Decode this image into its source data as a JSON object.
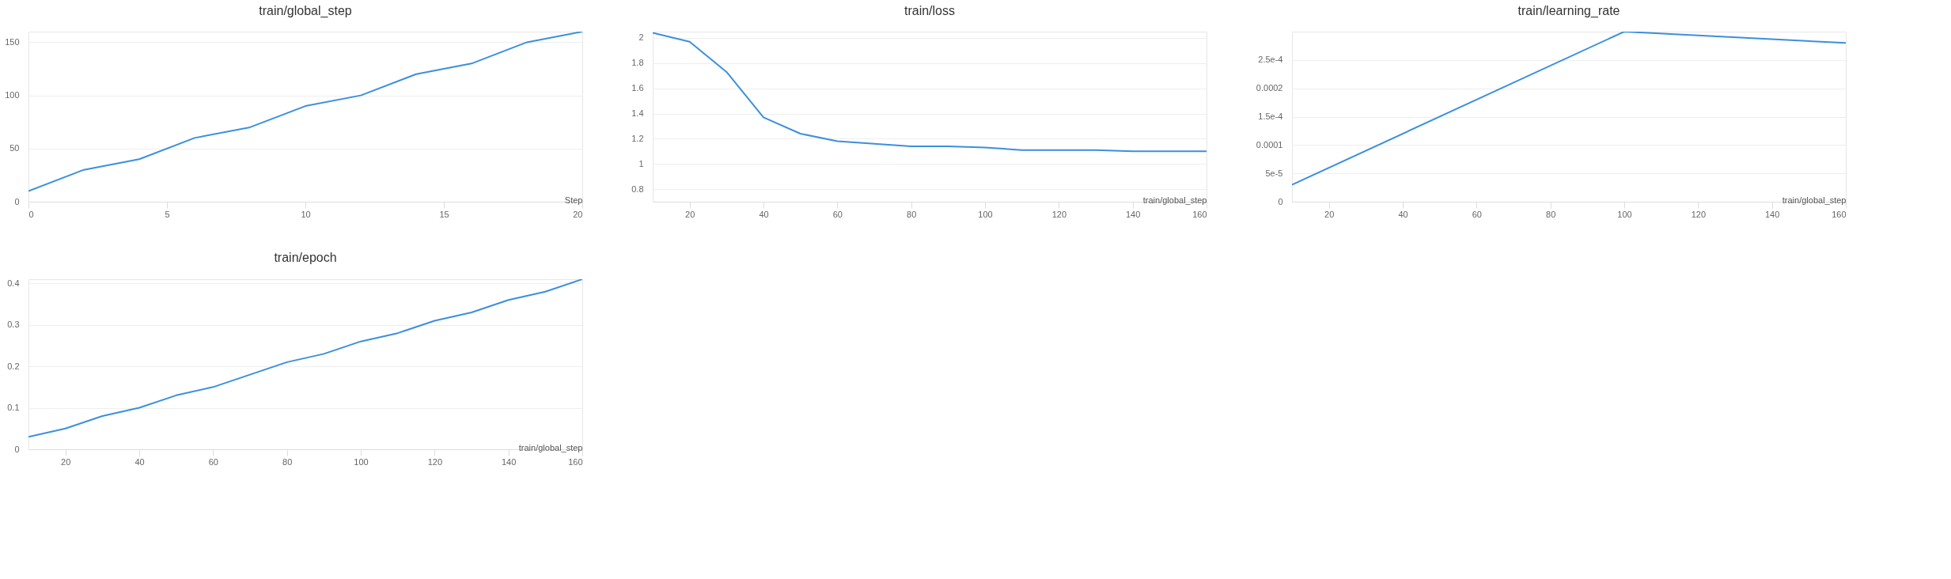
{
  "chart_data": [
    {
      "type": "line",
      "title": "train/global_step",
      "xlabel": "Step",
      "x": [
        0,
        2,
        4,
        6,
        8,
        10,
        12,
        14,
        16,
        18,
        20
      ],
      "series": [
        {
          "color": "#3b8fde",
          "values": [
            10,
            30,
            40,
            60,
            70,
            90,
            100,
            120,
            130,
            150,
            160
          ]
        }
      ],
      "xlim": [
        0,
        20
      ],
      "xticks": [
        0,
        5,
        10,
        15,
        20
      ],
      "ylim": [
        0,
        160
      ],
      "yticks": [
        0,
        50,
        100,
        150
      ],
      "grid": "y"
    },
    {
      "type": "line",
      "title": "train/loss",
      "xlabel": "train/global_step",
      "x": [
        10,
        20,
        30,
        40,
        50,
        60,
        70,
        80,
        90,
        100,
        110,
        120,
        130,
        140,
        150,
        160
      ],
      "series": [
        {
          "color": "#3b8fde",
          "values": [
            2.04,
            1.97,
            1.73,
            1.37,
            1.24,
            1.18,
            1.16,
            1.14,
            1.14,
            1.13,
            1.11,
            1.11,
            1.11,
            1.1,
            1.1,
            1.1
          ]
        }
      ],
      "xlim": [
        10,
        160
      ],
      "xticks": [
        20,
        40,
        60,
        80,
        100,
        120,
        140,
        160
      ],
      "ylim": [
        0.7,
        2.05
      ],
      "yticks": [
        0.8,
        1,
        1.2,
        1.4,
        1.6,
        1.8,
        2
      ],
      "grid": "y"
    },
    {
      "type": "line",
      "title": "train/learning_rate",
      "xlabel": "train/global_step",
      "x": [
        10,
        100,
        160
      ],
      "series": [
        {
          "color": "#3b8fde",
          "values": [
            3e-05,
            0.0003,
            0.00028
          ]
        }
      ],
      "xlim": [
        10,
        160
      ],
      "xticks": [
        20,
        40,
        60,
        80,
        100,
        120,
        140,
        160
      ],
      "ylim": [
        0,
        0.0003
      ],
      "yticks": [
        0,
        {
          "value": 5e-05,
          "label": "5e-5"
        },
        0.0001,
        {
          "value": 0.00015,
          "label": "1.5e-4"
        },
        0.0002,
        {
          "value": 0.00025,
          "label": "2.5e-4"
        }
      ],
      "grid": "y"
    },
    {
      "type": "line",
      "title": "train/epoch",
      "xlabel": "train/global_step",
      "x": [
        10,
        20,
        30,
        40,
        50,
        60,
        70,
        80,
        90,
        100,
        110,
        120,
        130,
        140,
        150,
        160
      ],
      "series": [
        {
          "color": "#3b8fde",
          "values": [
            0.03,
            0.05,
            0.08,
            0.1,
            0.13,
            0.15,
            0.18,
            0.21,
            0.23,
            0.26,
            0.28,
            0.31,
            0.33,
            0.36,
            0.38,
            0.41
          ]
        }
      ],
      "xlim": [
        10,
        160
      ],
      "xticks": [
        20,
        40,
        60,
        80,
        100,
        120,
        140,
        160
      ],
      "ylim": [
        0,
        0.41
      ],
      "yticks": [
        0,
        0.1,
        0.2,
        0.3,
        0.4
      ],
      "grid": "y"
    }
  ]
}
